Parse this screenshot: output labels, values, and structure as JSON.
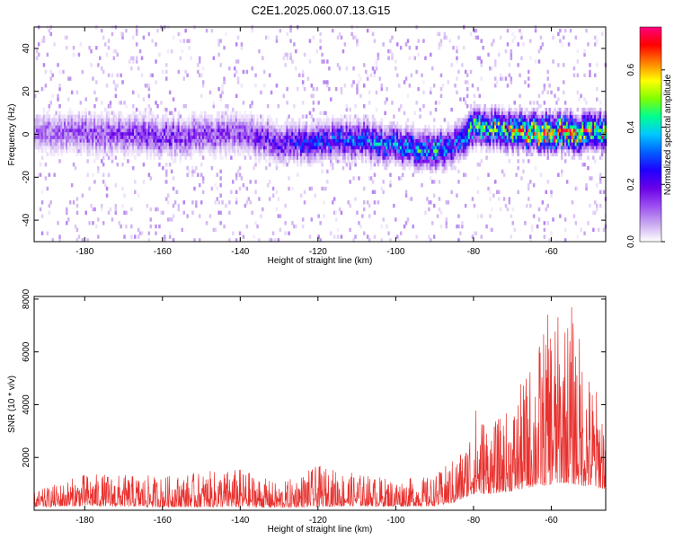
{
  "title": "C2E1.2025.060.07.13.G15",
  "colors": {
    "snr_line": "#e8312e",
    "axis": "#000000",
    "colormap": [
      "#ffffff",
      "#c9a8f0",
      "#9b4ef0",
      "#6a00e8",
      "#2000ff",
      "#0060ff",
      "#00c8ff",
      "#00ff90",
      "#80ff00",
      "#ffff00",
      "#ff8000",
      "#ff0000",
      "#ff0080"
    ]
  },
  "chart_data": [
    {
      "type": "heatmap",
      "title": "C2E1.2025.060.07.13.G15",
      "xlabel": "Height of straight line (km)",
      "ylabel": "Frequency (Hz)",
      "xlim": [
        -193,
        -46
      ],
      "ylim": [
        -50,
        50
      ],
      "xticks": [
        "-180",
        "-160",
        "-140",
        "-120",
        "-100",
        "-80",
        "-60"
      ],
      "yticks": [
        "-40",
        "-20",
        "0",
        "20",
        "40"
      ],
      "colorbar": {
        "label": "Normalized spectral amplitude",
        "range": [
          0,
          0.75
        ],
        "ticks": [
          "0.0",
          "0.2",
          "0.4",
          "0.6"
        ]
      },
      "ridge": {
        "description_points_x": [
          -193,
          -180,
          -160,
          -140,
          -130,
          -120,
          -110,
          -100,
          -90,
          -85,
          -80,
          -70,
          -60,
          -46
        ],
        "center_frequency_hz": [
          0,
          0,
          -2,
          0,
          -5,
          -4,
          -3,
          -6,
          -8,
          -6,
          3,
          1,
          0,
          0
        ],
        "peak_amplitude": [
          0.12,
          0.15,
          0.18,
          0.16,
          0.22,
          0.28,
          0.32,
          0.35,
          0.4,
          0.3,
          0.45,
          0.55,
          0.7,
          0.55
        ]
      },
      "grid": false
    },
    {
      "type": "line",
      "xlabel": "Height of straight line (km)",
      "ylabel": "SNR (10 * v/v)",
      "xlim": [
        -193,
        -46
      ],
      "ylim": [
        0,
        8100
      ],
      "xticks": [
        "-180",
        "-160",
        "-140",
        "-120",
        "-100",
        "-80",
        "-60"
      ],
      "yticks": [
        "2000",
        "4000",
        "6000",
        "8000"
      ],
      "envelope": {
        "x": [
          -193,
          -180,
          -160,
          -140,
          -130,
          -120,
          -110,
          -100,
          -90,
          -85,
          -82,
          -80,
          -75,
          -70,
          -65,
          -60,
          -57,
          -55,
          -50,
          -46
        ],
        "baseline": [
          300,
          400,
          300,
          300,
          250,
          350,
          400,
          350,
          400,
          700,
          1200,
          1500,
          1600,
          1800,
          2200,
          2400,
          2600,
          2500,
          2200,
          2000
        ],
        "peak": [
          700,
          1400,
          1300,
          1600,
          1000,
          1700,
          1400,
          1200,
          1300,
          2000,
          2600,
          4100,
          3300,
          4000,
          5800,
          7800,
          7200,
          8000,
          5200,
          3900
        ]
      },
      "grid": false
    }
  ]
}
